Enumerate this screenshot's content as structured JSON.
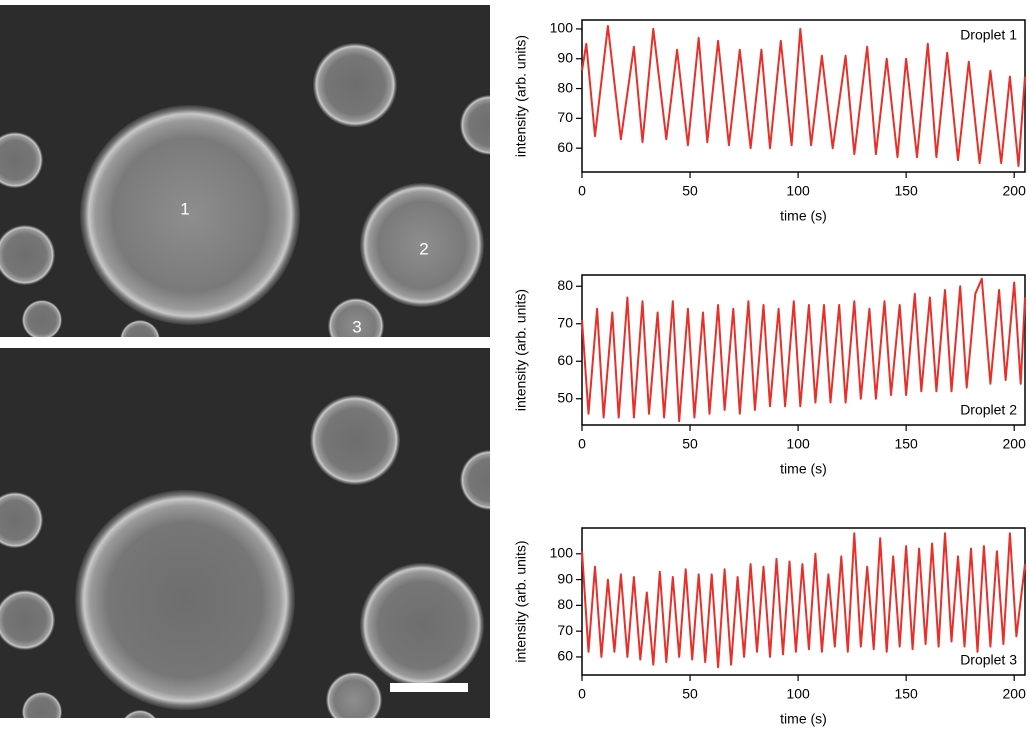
{
  "image_labels": [
    "1",
    "2",
    "3"
  ],
  "chart_data": [
    {
      "type": "line",
      "xlabel": "time (s)",
      "ylabel": "intensity (arb. units)",
      "xlim": [
        0,
        205
      ],
      "ylim": [
        52,
        103
      ],
      "xticks": [
        0,
        50,
        100,
        150,
        200
      ],
      "yticks": [
        60,
        70,
        80,
        90,
        100
      ],
      "legend": "upper right",
      "x": [
        0,
        2,
        6,
        12,
        18,
        24,
        28,
        33,
        39,
        44,
        49,
        54,
        58,
        63,
        68,
        73,
        78,
        83,
        87,
        92,
        97,
        101,
        106,
        111,
        116,
        122,
        126,
        132,
        136,
        141,
        146,
        150,
        155,
        160,
        164,
        169,
        174,
        179,
        184,
        189,
        194,
        198,
        202,
        205
      ],
      "series": [
        {
          "name": "Droplet 1",
          "color": "#e8302a",
          "values": [
            86,
            95,
            64,
            101,
            63,
            94,
            62,
            100,
            63,
            93,
            61,
            97,
            62,
            96,
            61,
            93,
            60,
            93,
            60,
            96,
            61,
            100,
            61,
            91,
            60,
            91,
            58,
            94,
            58,
            90,
            57,
            90,
            57,
            95,
            57,
            92,
            56,
            89,
            55,
            86,
            55,
            84,
            54,
            84
          ]
        }
      ]
    },
    {
      "type": "line",
      "xlabel": "time (s)",
      "ylabel": "intensity (arb. units)",
      "xlim": [
        0,
        205
      ],
      "ylim": [
        43,
        83
      ],
      "xticks": [
        0,
        50,
        100,
        150,
        200
      ],
      "yticks": [
        50,
        60,
        70,
        80
      ],
      "legend": "lower right",
      "x": [
        0,
        3,
        7,
        10,
        14,
        17,
        21,
        24,
        28,
        31,
        35,
        38,
        42,
        45,
        49,
        52,
        56,
        59,
        63,
        66,
        70,
        73,
        77,
        80,
        84,
        87,
        91,
        94,
        98,
        101,
        105,
        108,
        112,
        115,
        119,
        122,
        126,
        129,
        133,
        136,
        140,
        143,
        147,
        150,
        154,
        157,
        161,
        164,
        168,
        171,
        175,
        178,
        182,
        185,
        189,
        193,
        196,
        200,
        203,
        205
      ],
      "series": [
        {
          "name": "Droplet 2",
          "color": "#e8302a",
          "values": [
            71,
            46,
            74,
            45,
            73,
            45,
            77,
            45,
            76,
            46,
            73,
            45,
            76,
            44,
            74,
            45,
            73,
            46,
            75,
            47,
            74,
            46,
            76,
            47,
            75,
            48,
            74,
            48,
            76,
            48,
            75,
            49,
            75,
            49,
            75,
            49,
            76,
            50,
            74,
            50,
            76,
            51,
            75,
            51,
            78,
            52,
            77,
            52,
            79,
            52,
            80,
            53,
            78,
            82,
            54,
            79,
            55,
            81,
            54,
            77
          ]
        }
      ]
    },
    {
      "type": "line",
      "xlabel": "time (s)",
      "ylabel": "intensity (arb. units)",
      "xlim": [
        0,
        205
      ],
      "ylim": [
        53,
        110
      ],
      "xticks": [
        0,
        50,
        100,
        150,
        200
      ],
      "yticks": [
        60,
        70,
        80,
        90,
        100
      ],
      "legend": "lower right",
      "x": [
        0,
        3,
        6,
        9,
        12,
        15,
        18,
        21,
        24,
        27,
        30,
        33,
        36,
        39,
        42,
        45,
        48,
        51,
        54,
        57,
        60,
        63,
        66,
        69,
        72,
        75,
        78,
        81,
        84,
        87,
        90,
        93,
        96,
        99,
        102,
        105,
        108,
        111,
        114,
        117,
        120,
        123,
        126,
        129,
        132,
        135,
        138,
        141,
        144,
        147,
        150,
        153,
        156,
        159,
        162,
        165,
        168,
        171,
        174,
        177,
        180,
        183,
        186,
        189,
        192,
        195,
        198,
        201,
        205
      ],
      "series": [
        {
          "name": "Droplet 3",
          "color": "#e8302a",
          "values": [
            101,
            62,
            95,
            60,
            90,
            62,
            92,
            60,
            91,
            59,
            85,
            57,
            93,
            58,
            91,
            60,
            94,
            59,
            92,
            58,
            92,
            56,
            94,
            57,
            91,
            60,
            96,
            62,
            95,
            60,
            98,
            61,
            97,
            62,
            96,
            63,
            100,
            62,
            92,
            64,
            99,
            62,
            108,
            64,
            95,
            63,
            106,
            62,
            99,
            64,
            103,
            63,
            102,
            65,
            104,
            64,
            108,
            66,
            99,
            64,
            102,
            62,
            103,
            64,
            101,
            65,
            108,
            68,
            96
          ]
        }
      ]
    }
  ]
}
